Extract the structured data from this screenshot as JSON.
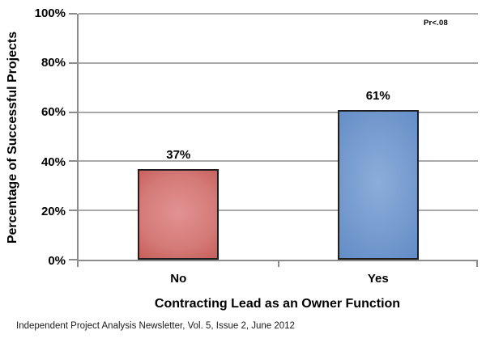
{
  "chart_data": {
    "type": "bar",
    "title": "",
    "categories": [
      "No",
      "Yes"
    ],
    "values": [
      37,
      61
    ],
    "value_labels": [
      "37%",
      "61%"
    ],
    "xlabel": "Contracting Lead as an Owner Function",
    "ylabel": "Percentage of Successful Projects",
    "annotation": "Pr<.08",
    "ylim": [
      0,
      100
    ],
    "yticks": [
      0,
      20,
      40,
      60,
      80,
      100
    ],
    "ytick_labels": [
      "0%",
      "20%",
      "40%",
      "60%",
      "80%",
      "100%"
    ],
    "grid": true,
    "legend_position": "none",
    "bar_styles": [
      {
        "name": "red-bar",
        "center_color": "#e29292",
        "mid_color": "#d47a77",
        "edge_color": "#c0504d",
        "border_color": "#1f1f1f"
      },
      {
        "name": "blue-bar",
        "center_color": "#8cadda",
        "mid_color": "#7399cd",
        "edge_color": "#5b87c5",
        "border_color": "#1f1f1f"
      }
    ]
  },
  "source_note": "Independent Project Analysis Newsletter, Vol. 5, Issue 2, June 2012",
  "colors": {
    "background": "#ffffff",
    "grid": "#a9a9a9",
    "axis": "#8c8c8c",
    "text": "#000000"
  }
}
